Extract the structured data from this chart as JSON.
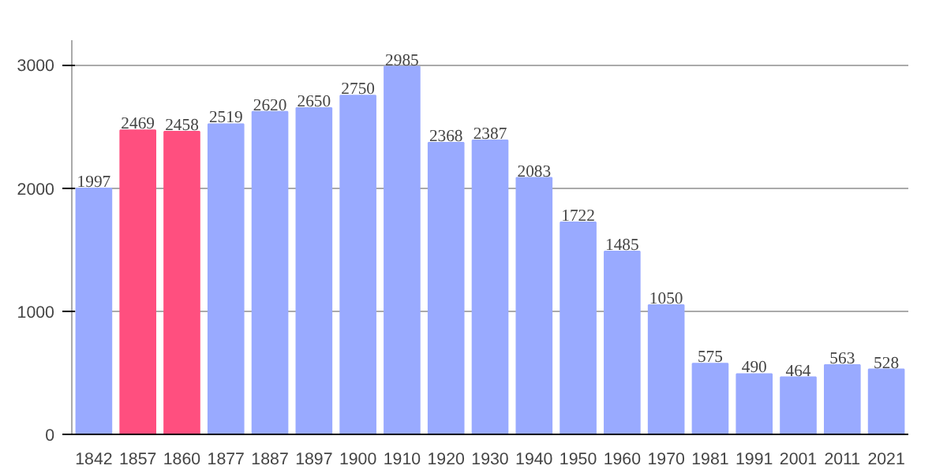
{
  "chart_data": {
    "type": "bar",
    "categories": [
      "1842",
      "1857",
      "1860",
      "1877",
      "1887",
      "1897",
      "1900",
      "1910",
      "1920",
      "1930",
      "1940",
      "1950",
      "1960",
      "1970",
      "1981",
      "1991",
      "2001",
      "2011",
      "2021"
    ],
    "values": [
      1997,
      2469,
      2458,
      2519,
      2620,
      2650,
      2750,
      2985,
      2368,
      2387,
      2083,
      1722,
      1485,
      1050,
      575,
      490,
      464,
      563,
      528
    ],
    "colors": [
      "#99aaff",
      "#ff4f7f",
      "#ff4f7f",
      "#99aaff",
      "#99aaff",
      "#99aaff",
      "#99aaff",
      "#99aaff",
      "#99aaff",
      "#99aaff",
      "#99aaff",
      "#99aaff",
      "#99aaff",
      "#99aaff",
      "#99aaff",
      "#99aaff",
      "#99aaff",
      "#99aaff",
      "#99aaff"
    ],
    "ylim": [
      0,
      3200
    ],
    "yticks": [
      0,
      1000,
      2000,
      3000
    ],
    "grid": "y",
    "data_labels": true
  }
}
